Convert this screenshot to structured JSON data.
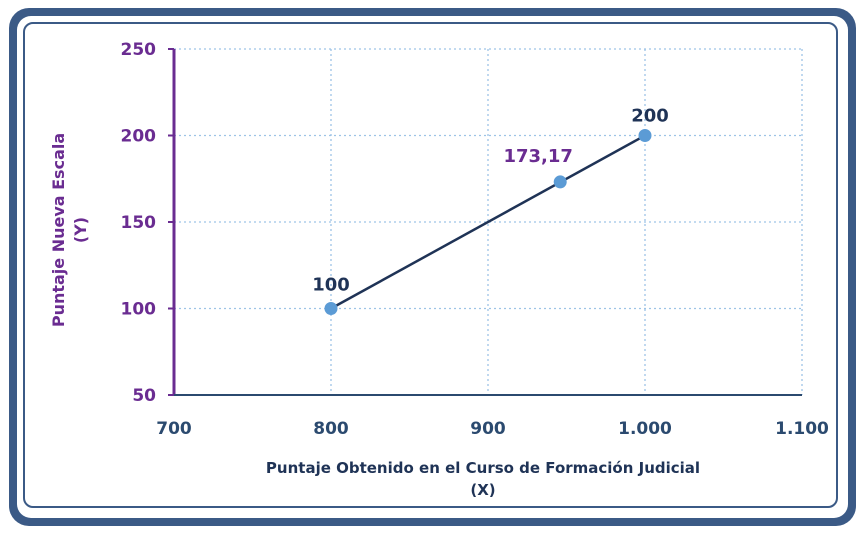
{
  "chart_data": {
    "type": "scatter",
    "x": [
      800,
      946,
      1000
    ],
    "y": [
      100,
      173.17,
      200
    ],
    "data_labels": [
      "100",
      "173,17",
      "200"
    ],
    "data_label_colors": [
      "#1f3356",
      "#6a2c91",
      "#1f3356"
    ],
    "trendline": {
      "from": [
        800,
        100
      ],
      "to": [
        1000,
        200
      ]
    },
    "xlabel_line1": "Puntaje Obtenido en el Curso de Formación Judicial",
    "xlabel_line2": "(X)",
    "ylabel_line1": "Puntaje Nueva Escala",
    "ylabel_line2": "(Y)",
    "xlim": [
      700,
      1100
    ],
    "ylim": [
      50,
      250
    ],
    "x_ticks": [
      700,
      800,
      900,
      1000,
      1100
    ],
    "x_tick_labels": [
      "700",
      "800",
      "900",
      "1.000",
      "1.100"
    ],
    "y_ticks": [
      50,
      100,
      150,
      200,
      250
    ],
    "y_tick_labels": [
      "50",
      "100",
      "150",
      "200",
      "250"
    ],
    "grid": true,
    "colors": {
      "point": "#5b9bd5",
      "line": "#1f3356",
      "grid": "#9dc3e6",
      "y_axis": "#6a2c91",
      "x_axis": "#2b4a6f"
    }
  }
}
